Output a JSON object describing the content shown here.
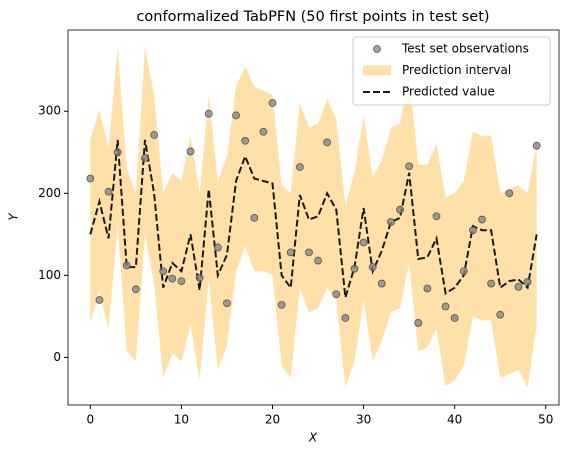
{
  "chart_data": {
    "type": "line",
    "title": "conformalized TabPFN (50 first points in test set)",
    "x_label": "X",
    "y_label": "Y",
    "x": [
      0,
      1,
      2,
      3,
      4,
      5,
      6,
      7,
      8,
      9,
      10,
      11,
      12,
      13,
      14,
      15,
      16,
      17,
      18,
      19,
      20,
      21,
      22,
      23,
      24,
      25,
      26,
      27,
      28,
      29,
      30,
      31,
      32,
      33,
      34,
      35,
      36,
      37,
      38,
      39,
      40,
      41,
      42,
      43,
      44,
      45,
      46,
      47,
      48,
      49
    ],
    "xlim": [
      -2.45,
      51.45
    ],
    "xticks": [
      0,
      10,
      20,
      30,
      40,
      50
    ],
    "ylim": [
      -58,
      399
    ],
    "yticks": [
      0,
      100,
      200,
      300
    ],
    "legend": "upper right",
    "series": [
      {
        "name": "Test set observations",
        "type": "scatter",
        "color": "#808080",
        "values": [
          218,
          70,
          202,
          250,
          112,
          83,
          243,
          271,
          105,
          96,
          93,
          251,
          97,
          297,
          134,
          66,
          295,
          264,
          170,
          275,
          310,
          64,
          128,
          232,
          128,
          118,
          262,
          77,
          48,
          108,
          140,
          110,
          90,
          165,
          180,
          233,
          42,
          84,
          172,
          62,
          48,
          105,
          155,
          168,
          90,
          52,
          200,
          86,
          92,
          258
        ]
      },
      {
        "name": " Prediction interval",
        "type": "band",
        "color": "#ffe0a8",
        "lower": [
          42,
          80,
          35,
          160,
          8,
          -5,
          150,
          90,
          -25,
          5,
          -5,
          40,
          -28,
          95,
          -15,
          15,
          105,
          135,
          105,
          105,
          100,
          -10,
          -25,
          85,
          55,
          60,
          85,
          70,
          -37,
          -5,
          70,
          -5,
          20,
          55,
          60,
          115,
          8,
          12,
          35,
          -35,
          -28,
          -10,
          50,
          45,
          45,
          -25,
          -20,
          -15,
          -37,
          40
        ],
        "upper": [
          265,
          302,
          255,
          378,
          230,
          200,
          378,
          320,
          200,
          225,
          215,
          270,
          200,
          320,
          215,
          245,
          330,
          355,
          330,
          325,
          320,
          210,
          200,
          310,
          280,
          285,
          315,
          290,
          185,
          225,
          295,
          220,
          240,
          280,
          285,
          345,
          235,
          235,
          260,
          195,
          200,
          215,
          275,
          270,
          270,
          200,
          205,
          210,
          200,
          260
        ]
      },
      {
        "name": "Predicted value",
        "type": "line",
        "color": "#1a1a1a",
        "values": [
          150,
          190,
          145,
          265,
          110,
          110,
          265,
          200,
          85,
          115,
          105,
          150,
          82,
          205,
          100,
          125,
          215,
          245,
          218,
          215,
          212,
          100,
          85,
          198,
          168,
          172,
          200,
          180,
          73,
          110,
          182,
          105,
          130,
          165,
          170,
          225,
          120,
          122,
          145,
          78,
          85,
          100,
          160,
          155,
          155,
          85,
          93,
          95,
          85,
          150
        ]
      }
    ]
  }
}
